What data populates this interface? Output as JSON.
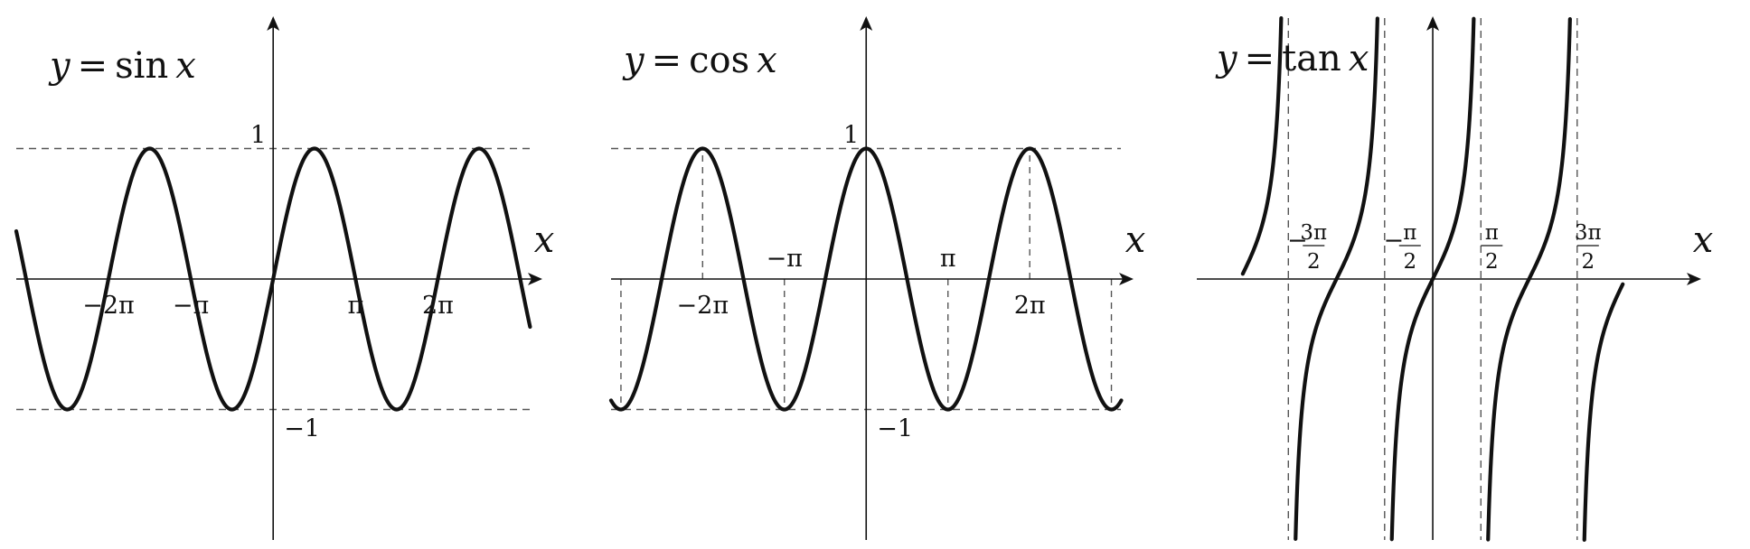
{
  "chart_data": [
    {
      "type": "line",
      "title": {
        "lhs": "y",
        "eq": "=",
        "fn": "sin",
        "arg": "x"
      },
      "xlabel": "x",
      "ylabel": "",
      "function": "sin",
      "xlim": [
        -9.8,
        10.2
      ],
      "ylim": [
        -2.0,
        2.0
      ],
      "x_ticks": [
        {
          "value": -6.283,
          "label": "−2π"
        },
        {
          "value": -3.142,
          "label": "−π"
        },
        {
          "value": 3.142,
          "label": "π"
        },
        {
          "value": 6.283,
          "label": "2π"
        }
      ],
      "y_ticks": [
        {
          "value": 1,
          "label": "1"
        },
        {
          "value": -1,
          "label": "−1"
        }
      ],
      "dashed_levels": [
        1,
        -1
      ],
      "vertical_guides": [],
      "asymptotes": [],
      "series": [
        {
          "x_range": [
            -9.8,
            9.8
          ],
          "samples": 400
        }
      ]
    },
    {
      "type": "line",
      "title": {
        "lhs": "y",
        "eq": "=",
        "fn": "cos",
        "arg": "x"
      },
      "xlabel": "x",
      "ylabel": "",
      "function": "cos",
      "xlim": [
        -9.8,
        10.2
      ],
      "ylim": [
        -2.0,
        2.0
      ],
      "x_ticks": [
        {
          "value": -6.283,
          "label": "−2π",
          "position": "below"
        },
        {
          "value": -3.142,
          "label": "−π",
          "position": "above"
        },
        {
          "value": 3.142,
          "label": "π",
          "position": "above"
        },
        {
          "value": 6.283,
          "label": "2π",
          "position": "below"
        }
      ],
      "y_ticks": [
        {
          "value": 1,
          "label": "1"
        },
        {
          "value": -1,
          "label": "−1"
        }
      ],
      "dashed_levels": [
        1,
        -1
      ],
      "vertical_guides": [
        -9.42,
        -6.283,
        -3.142,
        3.142,
        6.283,
        9.42
      ],
      "asymptotes": [],
      "series": [
        {
          "x_range": [
            -9.8,
            9.8
          ],
          "samples": 400
        }
      ]
    },
    {
      "type": "line",
      "title": {
        "lhs": "y",
        "eq": "=",
        "fn": "tan",
        "arg": "x"
      },
      "xlabel": "x",
      "ylabel": "",
      "function": "tan",
      "xlim": [
        -7.7,
        8.7
      ],
      "ylim": [
        -4.2,
        4.2
      ],
      "x_ticks": [
        {
          "value": -4.712,
          "sign": "−",
          "num": "3π",
          "den": "2"
        },
        {
          "value": -1.571,
          "sign": "−",
          "num": "π",
          "den": "2"
        },
        {
          "value": 1.571,
          "sign": "",
          "num": "π",
          "den": "2"
        },
        {
          "value": 4.712,
          "sign": "",
          "num": "3π",
          "den": "2"
        }
      ],
      "y_ticks": [],
      "dashed_levels": [],
      "vertical_guides": [],
      "asymptotes": [
        -4.712,
        -1.571,
        1.571,
        4.712
      ],
      "series": [
        {
          "x_range": [
            -6.2,
            6.2
          ],
          "samples": 900
        }
      ]
    }
  ]
}
